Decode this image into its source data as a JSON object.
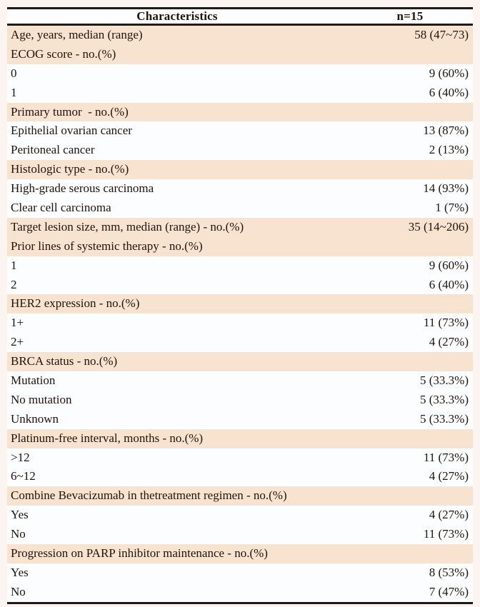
{
  "colors": {
    "page_bg": "#fcf4f1",
    "plain_row": "#fbfdfe",
    "shaded_row": "#f8e3d1",
    "border": "#1b1b1b",
    "text": "#201309"
  },
  "table": {
    "header": {
      "characteristics_label": "Characteristics",
      "n_label": "n=15"
    },
    "rows": [
      {
        "label": "Age, years, median (range)",
        "value": "58 (47~73)",
        "shaded": true
      },
      {
        "label": "ECOG score - no.(%)",
        "value": "",
        "shaded": true
      },
      {
        "label": "0",
        "value": "9 (60%)",
        "shaded": false
      },
      {
        "label": "1",
        "value": "6 (40%)",
        "shaded": false
      },
      {
        "label": "Primary tumor  - no.(%)",
        "value": "",
        "shaded": true
      },
      {
        "label": "Epithelial ovarian cancer",
        "value": "13 (87%)",
        "shaded": false
      },
      {
        "label": "Peritoneal cancer",
        "value": "2 (13%)",
        "shaded": false
      },
      {
        "label": "Histologic type - no.(%)",
        "value": "",
        "shaded": true
      },
      {
        "label": "High-grade serous carcinoma",
        "value": "14 (93%)",
        "shaded": false
      },
      {
        "label": "Clear cell carcinoma",
        "value": "1 (7%)",
        "shaded": false
      },
      {
        "label": "Target lesion size, mm, median (range) - no.(%)",
        "value": "35 (14~206)",
        "shaded": true
      },
      {
        "label": "Prior lines of systemic therapy - no.(%)",
        "value": "",
        "shaded": true
      },
      {
        "label": "1",
        "value": "9 (60%)",
        "shaded": false
      },
      {
        "label": "2",
        "value": "6 (40%)",
        "shaded": false
      },
      {
        "label": "HER2 expression - no.(%)",
        "value": "",
        "shaded": true
      },
      {
        "label": "1+",
        "value": "11 (73%)",
        "shaded": false
      },
      {
        "label": "2+",
        "value": "4 (27%)",
        "shaded": false
      },
      {
        "label": "BRCA status - no.(%)",
        "value": "",
        "shaded": true
      },
      {
        "label": "Mutation",
        "value": "5 (33.3%)",
        "shaded": false
      },
      {
        "label": "No mutation",
        "value": "5 (33.3%)",
        "shaded": false
      },
      {
        "label": "Unknown",
        "value": "5 (33.3%)",
        "shaded": false
      },
      {
        "label": "Platinum-free interval, months - no.(%)",
        "value": "",
        "shaded": true
      },
      {
        "label": ">12",
        "value": "11 (73%)",
        "shaded": false
      },
      {
        "label": "6~12",
        "value": "4 (27%)",
        "shaded": false
      },
      {
        "label": "Combine Bevacizumab in thetreatment regimen - no.(%)",
        "value": "",
        "shaded": true
      },
      {
        "label": "Yes",
        "value": "4 (27%)",
        "shaded": false
      },
      {
        "label": "No",
        "value": "11 (73%)",
        "shaded": false
      },
      {
        "label": "Progression on PARP inhibitor maintenance - no.(%)",
        "value": "",
        "shaded": true
      },
      {
        "label": "Yes",
        "value": "8 (53%)",
        "shaded": false
      },
      {
        "label": "No",
        "value": "7 (47%)",
        "shaded": false
      }
    ]
  }
}
